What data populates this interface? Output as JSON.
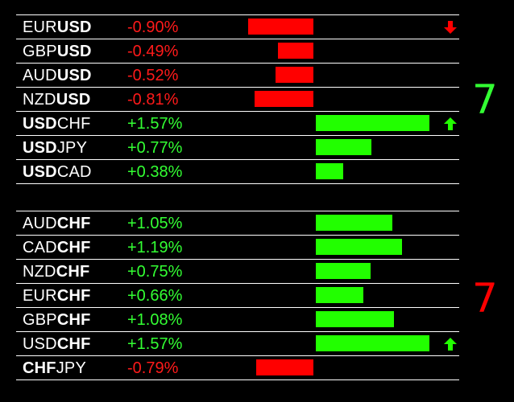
{
  "colors": {
    "negative": "#ff0000",
    "positive": "#22ff00",
    "background": "#000000"
  },
  "groups": [
    {
      "id": "usd",
      "score": "7",
      "score_color": "#33ff33",
      "rows": [
        {
          "pre": "EUR",
          "post": "USD",
          "bold": "post",
          "pct": "-0.90%",
          "value": -0.9,
          "arrow": "down"
        },
        {
          "pre": "GBP",
          "post": "USD",
          "bold": "post",
          "pct": "-0.49%",
          "value": -0.49,
          "arrow": ""
        },
        {
          "pre": "AUD",
          "post": "USD",
          "bold": "post",
          "pct": "-0.52%",
          "value": -0.52,
          "arrow": ""
        },
        {
          "pre": "NZD",
          "post": "USD",
          "bold": "post",
          "pct": "-0.81%",
          "value": -0.81,
          "arrow": ""
        },
        {
          "pre": "USD",
          "post": "CHF",
          "bold": "pre",
          "pct": "+1.57%",
          "value": 1.57,
          "arrow": "up"
        },
        {
          "pre": "USD",
          "post": "JPY",
          "bold": "pre",
          "pct": "+0.77%",
          "value": 0.77,
          "arrow": ""
        },
        {
          "pre": "USD",
          "post": "CAD",
          "bold": "pre",
          "pct": "+0.38%",
          "value": 0.38,
          "arrow": ""
        }
      ]
    },
    {
      "id": "chf",
      "score": "7",
      "score_color": "#ff0000",
      "rows": [
        {
          "pre": "AUD",
          "post": "CHF",
          "bold": "post",
          "pct": "+1.05%",
          "value": 1.05,
          "arrow": ""
        },
        {
          "pre": "CAD",
          "post": "CHF",
          "bold": "post",
          "pct": "+1.19%",
          "value": 1.19,
          "arrow": ""
        },
        {
          "pre": "NZD",
          "post": "CHF",
          "bold": "post",
          "pct": "+0.75%",
          "value": 0.75,
          "arrow": ""
        },
        {
          "pre": "EUR",
          "post": "CHF",
          "bold": "post",
          "pct": "+0.66%",
          "value": 0.66,
          "arrow": ""
        },
        {
          "pre": "GBP",
          "post": "CHF",
          "bold": "post",
          "pct": "+1.08%",
          "value": 1.08,
          "arrow": ""
        },
        {
          "pre": "USD",
          "post": "CHF",
          "bold": "post",
          "pct": "+1.57%",
          "value": 1.57,
          "arrow": "up"
        },
        {
          "pre": "CHF",
          "post": "JPY",
          "bold": "pre",
          "pct": "-0.79%",
          "value": -0.79,
          "arrow": ""
        }
      ]
    }
  ]
}
